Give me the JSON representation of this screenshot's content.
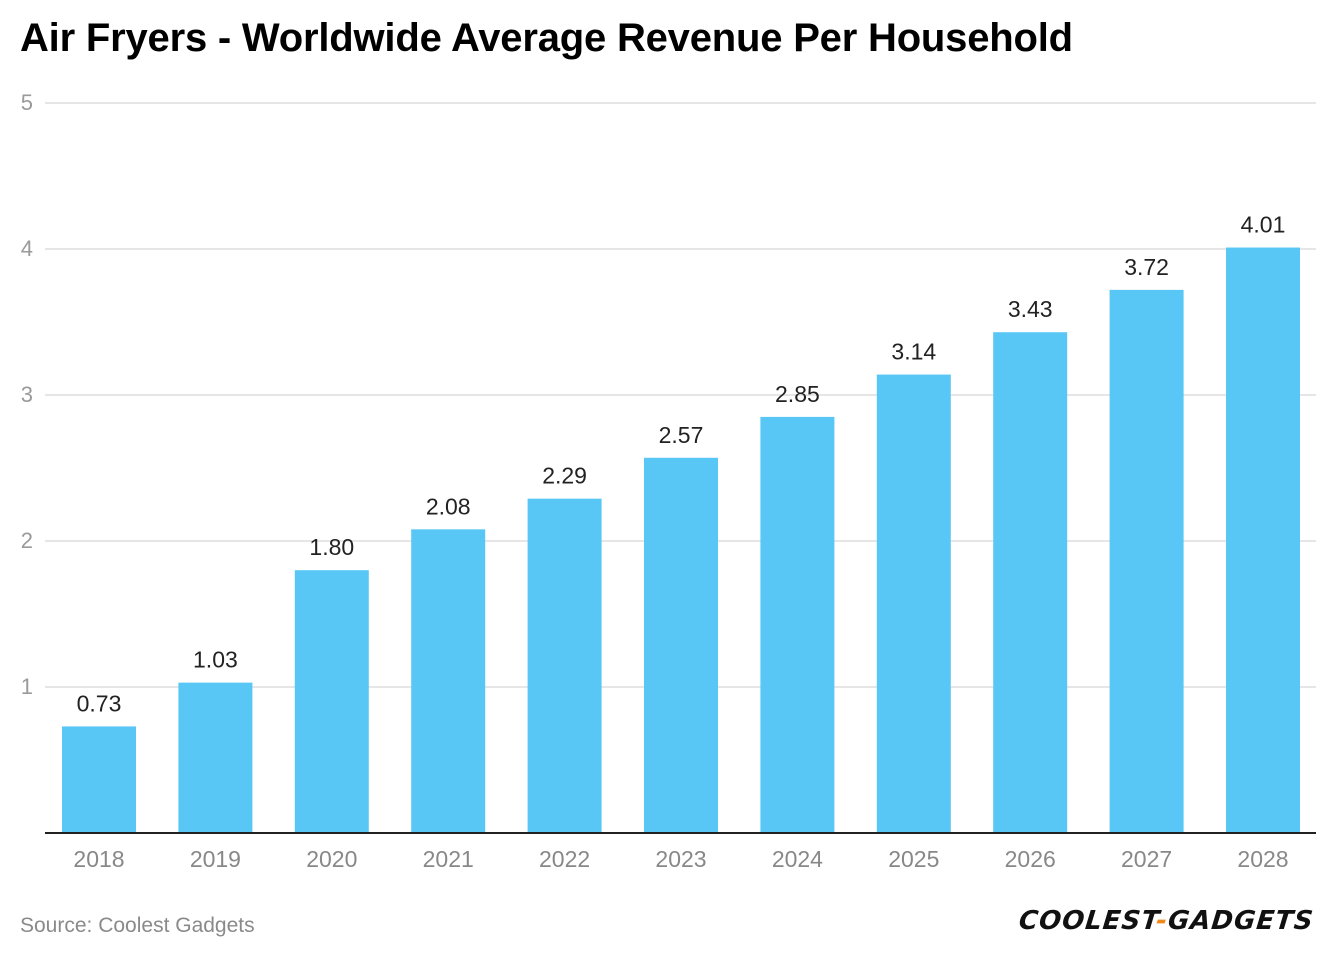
{
  "title": "Air Fryers - Worldwide Average Revenue Per Household",
  "source": "Source: Coolest Gadgets",
  "brand": {
    "part1": "COOLEST",
    "separator": "-",
    "part2": "GADGETS"
  },
  "colors": {
    "bar": "#58c7f5",
    "grid": "#dedede",
    "axis": "#222222",
    "tick_label": "#9a9a9a",
    "data_label": "#222222",
    "brand_accent": "#f08a1c"
  },
  "chart_data": {
    "type": "bar",
    "title": "Air Fryers - Worldwide Average Revenue Per Household",
    "xlabel": "",
    "ylabel": "",
    "categories": [
      "2018",
      "2019",
      "2020",
      "2021",
      "2022",
      "2023",
      "2024",
      "2025",
      "2026",
      "2027",
      "2028"
    ],
    "values": [
      0.73,
      1.03,
      1.8,
      2.08,
      2.29,
      2.57,
      2.85,
      3.14,
      3.43,
      3.72,
      4.01
    ],
    "value_labels": [
      "0.73",
      "1.03",
      "1.80",
      "2.08",
      "2.29",
      "2.57",
      "2.85",
      "3.14",
      "3.43",
      "3.72",
      "4.01"
    ],
    "ylim": [
      0,
      5
    ],
    "yticks": [
      1,
      2,
      3,
      4,
      5
    ],
    "grid": true,
    "legend": "none"
  }
}
